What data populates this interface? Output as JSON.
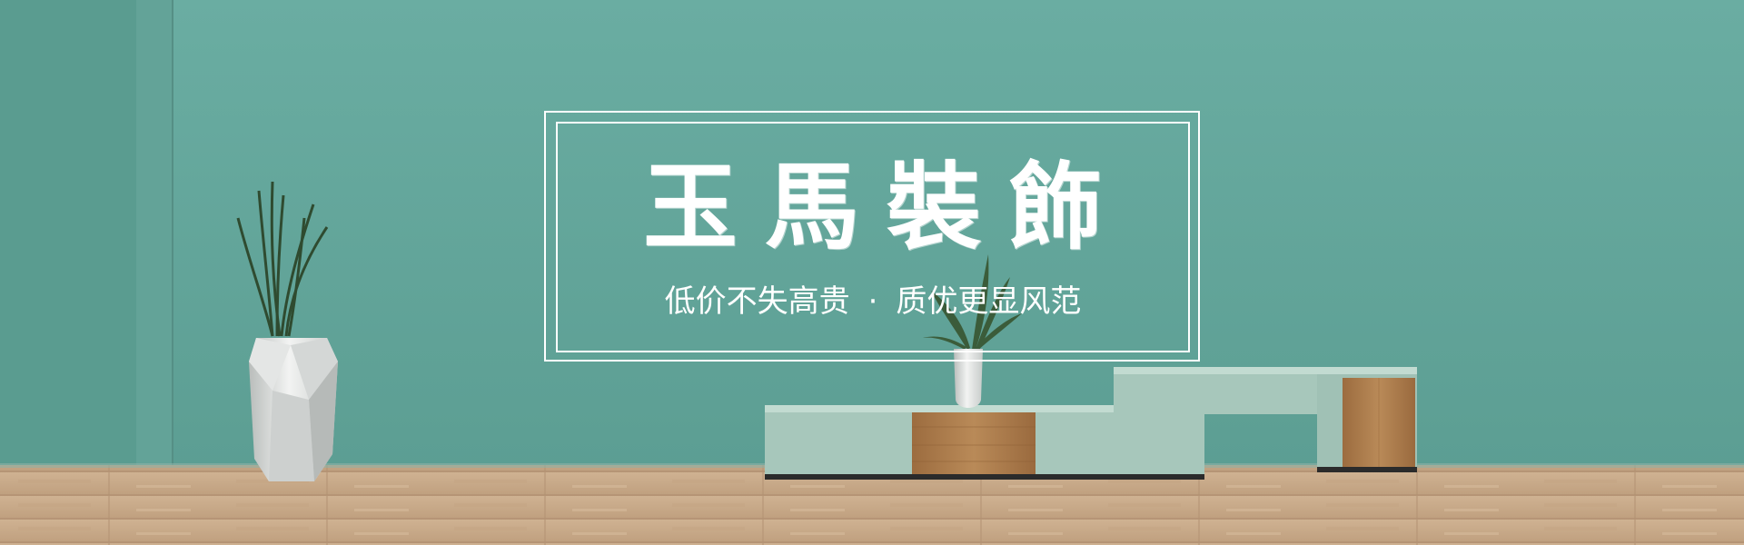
{
  "banner": {
    "brand": "玉馬裝飾",
    "slogan": {
      "left": "低价不失高贵",
      "separator": "·",
      "right": "质优更显风范"
    }
  },
  "colors": {
    "wall": "#62a69b",
    "floor": "#c7a886",
    "cabinet": "#a7c7bb",
    "wood": "#a97a4b",
    "frame": "#ffffff"
  },
  "icons": [
    "plant-vase-icon",
    "small-vase-icon",
    "tv-cabinet-icon"
  ]
}
